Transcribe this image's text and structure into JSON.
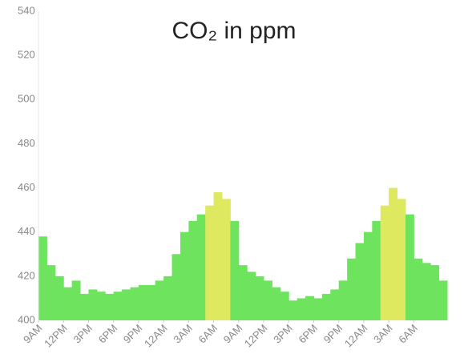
{
  "chart_data": {
    "type": "area-bars",
    "title": "CO₂ in ppm",
    "x": [
      0,
      1,
      2,
      3,
      4,
      5,
      6,
      7,
      8,
      9,
      10,
      11,
      12,
      13,
      14,
      15,
      16,
      17,
      18,
      19,
      20,
      21,
      22,
      23,
      24,
      25,
      26,
      27,
      28,
      29,
      30,
      31,
      32,
      33,
      34,
      35,
      36,
      37,
      38,
      39,
      40,
      41,
      42,
      43,
      44,
      45,
      46,
      47,
      48
    ],
    "values": [
      438,
      425,
      420,
      415,
      418,
      412,
      414,
      413,
      412,
      413,
      414,
      415,
      416,
      416,
      418,
      420,
      430,
      440,
      445,
      448,
      452,
      458,
      455,
      445,
      425,
      422,
      420,
      418,
      415,
      413,
      409,
      410,
      411,
      410,
      412,
      414,
      418,
      428,
      435,
      440,
      445,
      452,
      460,
      455,
      448,
      428,
      426,
      425,
      418
    ],
    "color": "#6ee45e",
    "highlight_color": "#dfe95f",
    "threshold": 450,
    "xlim": [
      0,
      49
    ],
    "xticks": [
      {
        "value": 0,
        "label": "9AM"
      },
      {
        "value": 3,
        "label": "12PM"
      },
      {
        "value": 6,
        "label": "3PM"
      },
      {
        "value": 9,
        "label": "6PM"
      },
      {
        "value": 12,
        "label": "9PM"
      },
      {
        "value": 15,
        "label": "12AM"
      },
      {
        "value": 18,
        "label": "3AM"
      },
      {
        "value": 21,
        "label": "6AM"
      },
      {
        "value": 24,
        "label": "9AM"
      },
      {
        "value": 27,
        "label": "12PM"
      },
      {
        "value": 30,
        "label": "3PM"
      },
      {
        "value": 33,
        "label": "6PM"
      },
      {
        "value": 36,
        "label": "9PM"
      },
      {
        "value": 39,
        "label": "12AM"
      },
      {
        "value": 42,
        "label": "3AM"
      },
      {
        "value": 45,
        "label": "6AM"
      }
    ],
    "ylim": [
      400,
      540
    ],
    "yticks": [
      400,
      420,
      440,
      460,
      480,
      500,
      520,
      540
    ],
    "grid": false
  }
}
